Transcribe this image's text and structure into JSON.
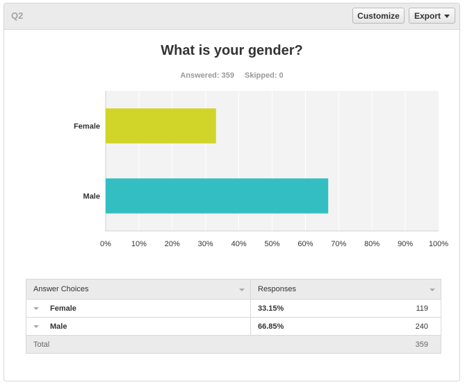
{
  "header": {
    "question_label": "Q2",
    "customize_label": "Customize",
    "export_label": "Export"
  },
  "stats": {
    "answered": "Answered: 359",
    "skipped": "Skipped: 0"
  },
  "chart_data": {
    "type": "bar",
    "orientation": "horizontal",
    "title": "What is your gender?",
    "categories": [
      "Female",
      "Male"
    ],
    "values": [
      33.15,
      66.85
    ],
    "colors": [
      "#d1d52a",
      "#33bfc1"
    ],
    "xlim": [
      0,
      100
    ],
    "xticks": [
      "0%",
      "10%",
      "20%",
      "30%",
      "40%",
      "50%",
      "60%",
      "70%",
      "80%",
      "90%",
      "100%"
    ],
    "grid": true
  },
  "table": {
    "headers": [
      "Answer Choices",
      "Responses"
    ],
    "rows": [
      {
        "choice": "Female",
        "percent": "33.15%",
        "count": "119"
      },
      {
        "choice": "Male",
        "percent": "66.85%",
        "count": "240"
      }
    ],
    "total_label": "Total",
    "total_count": "359"
  }
}
